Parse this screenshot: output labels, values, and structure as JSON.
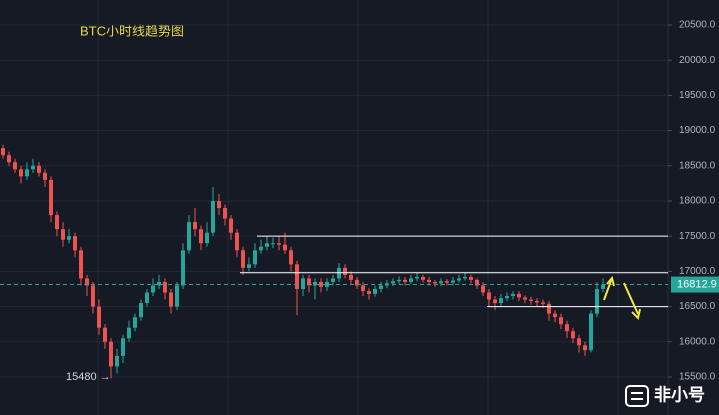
{
  "chart_data": {
    "type": "candlestick",
    "title": "BTC小时线趋势图",
    "low_label": "15480 →",
    "watermark": "非小号",
    "up_color": "#26a69a",
    "down_color": "#ef5350",
    "ylim": [
      14960,
      20855
    ],
    "yticks": [
      {
        "value": 15500,
        "label": "15500.0"
      },
      {
        "value": 16000,
        "label": "16000.0"
      },
      {
        "value": 16500,
        "label": "16500.0"
      },
      {
        "value": 17000,
        "label": "17000.0"
      },
      {
        "value": 17500,
        "label": "17500.0"
      },
      {
        "value": 18000,
        "label": "18000.0"
      },
      {
        "value": 18500,
        "label": "18500.0"
      },
      {
        "value": 19000,
        "label": "19000.0"
      },
      {
        "value": 19500,
        "label": "19500.0"
      },
      {
        "value": 20000,
        "label": "20000.0"
      },
      {
        "value": 20500,
        "label": "20500.0"
      }
    ],
    "grid": true,
    "last_price": 16812.9,
    "levels": [
      17500,
      16980,
      16500
    ],
    "open": [
      18750,
      18650,
      18550,
      18450,
      18350,
      18450,
      18500,
      18400,
      18300,
      17800,
      17600,
      17450,
      17500,
      17300,
      16900,
      16800,
      16500,
      16200,
      16000,
      15650,
      15800,
      16050,
      16200,
      16350,
      16550,
      16700,
      16800,
      16850,
      16700,
      16500,
      16800,
      17300,
      17700,
      17600,
      17400,
      17550,
      18000,
      17900,
      17750,
      17550,
      17300,
      17050,
      17100,
      17300,
      17350,
      17400,
      17400,
      17380,
      17300,
      17100,
      16750,
      16900,
      16800,
      16850,
      16780,
      16850,
      16900,
      17050,
      16950,
      16880,
      16800,
      16720,
      16680,
      16750,
      16800,
      16830,
      16860,
      16880,
      16850,
      16900,
      16920,
      16880,
      16850,
      16830,
      16860,
      16840,
      16870,
      16900,
      16920,
      16880,
      16800,
      16700,
      16600,
      16550,
      16620,
      16650,
      16680,
      16630,
      16600,
      16580,
      16560,
      16540,
      16400,
      16350,
      16250,
      16150,
      16050,
      15950,
      15880,
      16400,
      16750
    ],
    "high": [
      18800,
      18700,
      18600,
      18500,
      18550,
      18600,
      18550,
      18450,
      18350,
      17850,
      17700,
      17600,
      17550,
      17350,
      16950,
      16850,
      16600,
      16250,
      16050,
      15900,
      16100,
      16300,
      16400,
      16600,
      16750,
      16900,
      16950,
      16900,
      16750,
      16850,
      17400,
      17800,
      17900,
      17650,
      17700,
      18200,
      18100,
      17950,
      17800,
      17600,
      17350,
      17200,
      17400,
      17450,
      17500,
      17480,
      17500,
      17550,
      17350,
      17150,
      16950,
      16950,
      16900,
      16900,
      16900,
      16950,
      17120,
      17100,
      17000,
      16920,
      16850,
      16760,
      16800,
      16850,
      16880,
      16900,
      16930,
      16920,
      16950,
      16980,
      16950,
      16920,
      16880,
      16900,
      16890,
      16920,
      16950,
      16980,
      16950,
      16900,
      16850,
      16750,
      16650,
      16680,
      16700,
      16720,
      16720,
      16660,
      16640,
      16620,
      16600,
      16580,
      16450,
      16400,
      16300,
      16200,
      16100,
      16000,
      16450,
      16850,
      16900
    ],
    "low": [
      18600,
      18500,
      18400,
      18250,
      18300,
      18400,
      18350,
      18200,
      17700,
      17500,
      17350,
      17400,
      17200,
      16800,
      16650,
      16400,
      16100,
      15900,
      15480,
      15550,
      15700,
      16000,
      16150,
      16300,
      16500,
      16650,
      16750,
      16600,
      16400,
      16450,
      16750,
      17250,
      17500,
      17300,
      17350,
      17500,
      17800,
      17650,
      17450,
      17200,
      16950,
      17000,
      17050,
      17250,
      17300,
      17330,
      17300,
      17250,
      17000,
      16380,
      16650,
      16700,
      16600,
      16700,
      16720,
      16800,
      16850,
      16900,
      16820,
      16750,
      16650,
      16600,
      16640,
      16700,
      16760,
      16790,
      16820,
      16800,
      16820,
      16860,
      16840,
      16800,
      16780,
      16790,
      16800,
      16800,
      16840,
      16870,
      16830,
      16750,
      16650,
      16500,
      16450,
      16500,
      16580,
      16600,
      16580,
      16550,
      16530,
      16500,
      16480,
      16300,
      16280,
      16180,
      16050,
      15980,
      15850,
      15800,
      15850,
      16350,
      16700
    ],
    "close": [
      18650,
      18550,
      18450,
      18350,
      18450,
      18500,
      18400,
      18300,
      17800,
      17600,
      17450,
      17500,
      17300,
      16900,
      16800,
      16500,
      16200,
      16000,
      15650,
      15800,
      16050,
      16200,
      16350,
      16550,
      16700,
      16800,
      16850,
      16700,
      16500,
      16800,
      17300,
      17700,
      17600,
      17400,
      17550,
      18000,
      17900,
      17750,
      17550,
      17300,
      17050,
      17100,
      17300,
      17350,
      17400,
      17400,
      17380,
      17300,
      17100,
      16750,
      16900,
      16800,
      16850,
      16780,
      16850,
      16900,
      17050,
      16950,
      16880,
      16800,
      16720,
      16680,
      16750,
      16800,
      16830,
      16860,
      16880,
      16850,
      16900,
      16920,
      16880,
      16850,
      16830,
      16860,
      16840,
      16870,
      16900,
      16920,
      16880,
      16800,
      16700,
      16600,
      16550,
      16620,
      16650,
      16680,
      16630,
      16600,
      16580,
      16560,
      16540,
      16400,
      16350,
      16250,
      16150,
      16050,
      15950,
      15880,
      16400,
      16750,
      16812.9
    ]
  }
}
